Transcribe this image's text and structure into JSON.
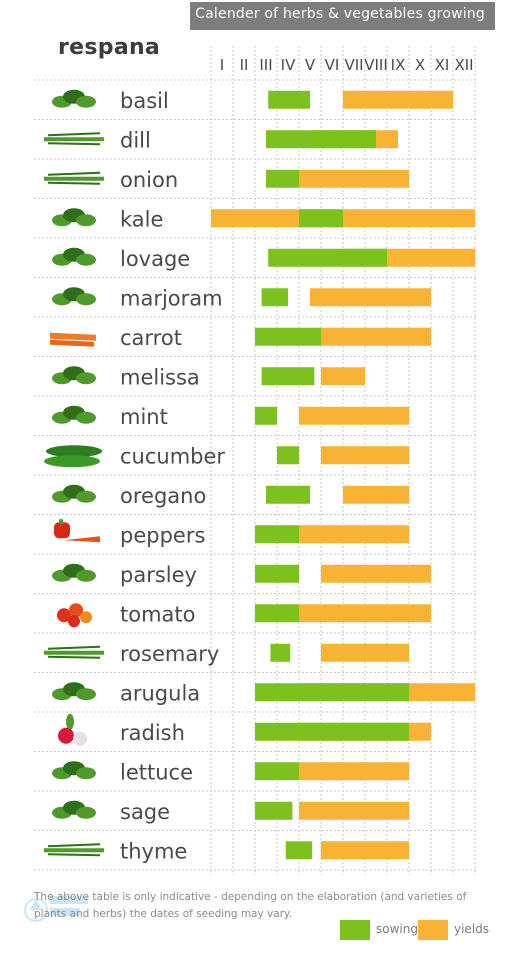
{
  "header": {
    "title": "Calender of herbs & vegetables growing",
    "brand": "respana"
  },
  "footer": {
    "note": "The above table is only indicative - depending on the elaboration (and varieties of plants and herbs) the dates of seeding may vary.",
    "watermark": "PINE TECH"
  },
  "legend": {
    "sowing_label": "sowing",
    "yields_label": "yields"
  },
  "colors": {
    "sowing": "#7cc11d",
    "yields": "#f8b335",
    "grid": "#c8c8c8",
    "text": "#4a4a4a",
    "title_band": "#7d7d7d"
  },
  "chart_data": {
    "type": "gantt",
    "title": "Calender of herbs & vegetables growing",
    "months": [
      "I",
      "II",
      "III",
      "IV",
      "V",
      "VI",
      "VII",
      "VIII",
      "IX",
      "X",
      "XI",
      "XII"
    ],
    "series_names": [
      "sowing",
      "yields"
    ],
    "rows": [
      {
        "name": "basil",
        "icon": "basil-icon",
        "sowing": [
          3.6,
          5.5
        ],
        "yields": [
          7.0,
          12.0
        ]
      },
      {
        "name": "dill",
        "icon": "dill-icon",
        "sowing": [
          3.5,
          8.5
        ],
        "yields": [
          5.5,
          9.5
        ]
      },
      {
        "name": "onion",
        "icon": "onion-icon",
        "sowing": [
          3.5,
          5.0
        ],
        "yields": [
          5.0,
          10.0
        ]
      },
      {
        "name": "kale",
        "icon": "kale-icon",
        "sowing": [
          5.0,
          7.0
        ],
        "yields": [
          1.0,
          13.0
        ]
      },
      {
        "name": "lovage",
        "icon": "lovage-icon",
        "sowing": [
          3.6,
          9.0
        ],
        "yields": [
          7.0,
          13.0
        ]
      },
      {
        "name": "marjoram",
        "icon": "marjoram-icon",
        "sowing": [
          3.3,
          4.5
        ],
        "yields": [
          5.5,
          11.0
        ]
      },
      {
        "name": "carrot",
        "icon": "carrot-icon",
        "sowing": [
          3.0,
          6.0
        ],
        "yields": [
          6.0,
          11.0
        ]
      },
      {
        "name": "melissa",
        "icon": "melissa-icon",
        "sowing": [
          3.3,
          5.7
        ],
        "yields": [
          6.0,
          8.0
        ]
      },
      {
        "name": "mint",
        "icon": "mint-icon",
        "sowing": [
          3.0,
          4.0
        ],
        "yields": [
          5.0,
          10.0
        ]
      },
      {
        "name": "cucumber",
        "icon": "cucumber-icon",
        "sowing": [
          4.0,
          5.0
        ],
        "yields": [
          6.0,
          10.0
        ]
      },
      {
        "name": "oregano",
        "icon": "oregano-icon",
        "sowing": [
          3.5,
          5.5
        ],
        "yields": [
          7.0,
          10.0
        ]
      },
      {
        "name": "peppers",
        "icon": "peppers-icon",
        "sowing": [
          3.0,
          5.0
        ],
        "yields": [
          5.0,
          10.0
        ]
      },
      {
        "name": "parsley",
        "icon": "parsley-icon",
        "sowing": [
          3.0,
          5.0
        ],
        "yields": [
          6.0,
          11.0
        ]
      },
      {
        "name": "tomato",
        "icon": "tomato-icon",
        "sowing": [
          3.0,
          5.0
        ],
        "yields": [
          5.0,
          11.0
        ]
      },
      {
        "name": "rosemary",
        "icon": "rosemary-icon",
        "sowing": [
          3.7,
          4.6
        ],
        "yields": [
          6.0,
          10.0
        ]
      },
      {
        "name": "arugula",
        "icon": "arugula-icon",
        "sowing": [
          3.0,
          10.0
        ],
        "yields": [
          5.0,
          13.0
        ]
      },
      {
        "name": "radish",
        "icon": "radish-icon",
        "sowing": [
          3.0,
          10.0
        ],
        "yields": [
          5.0,
          11.0
        ]
      },
      {
        "name": "lettuce",
        "icon": "lettuce-icon",
        "sowing": [
          3.0,
          5.0
        ],
        "yields": [
          5.0,
          10.0
        ]
      },
      {
        "name": "sage",
        "icon": "sage-icon",
        "sowing": [
          3.0,
          4.7
        ],
        "yields": [
          5.0,
          10.0
        ]
      },
      {
        "name": "thyme",
        "icon": "thyme-icon",
        "sowing": [
          4.4,
          5.6
        ],
        "yields": [
          6.0,
          10.0
        ]
      }
    ]
  }
}
